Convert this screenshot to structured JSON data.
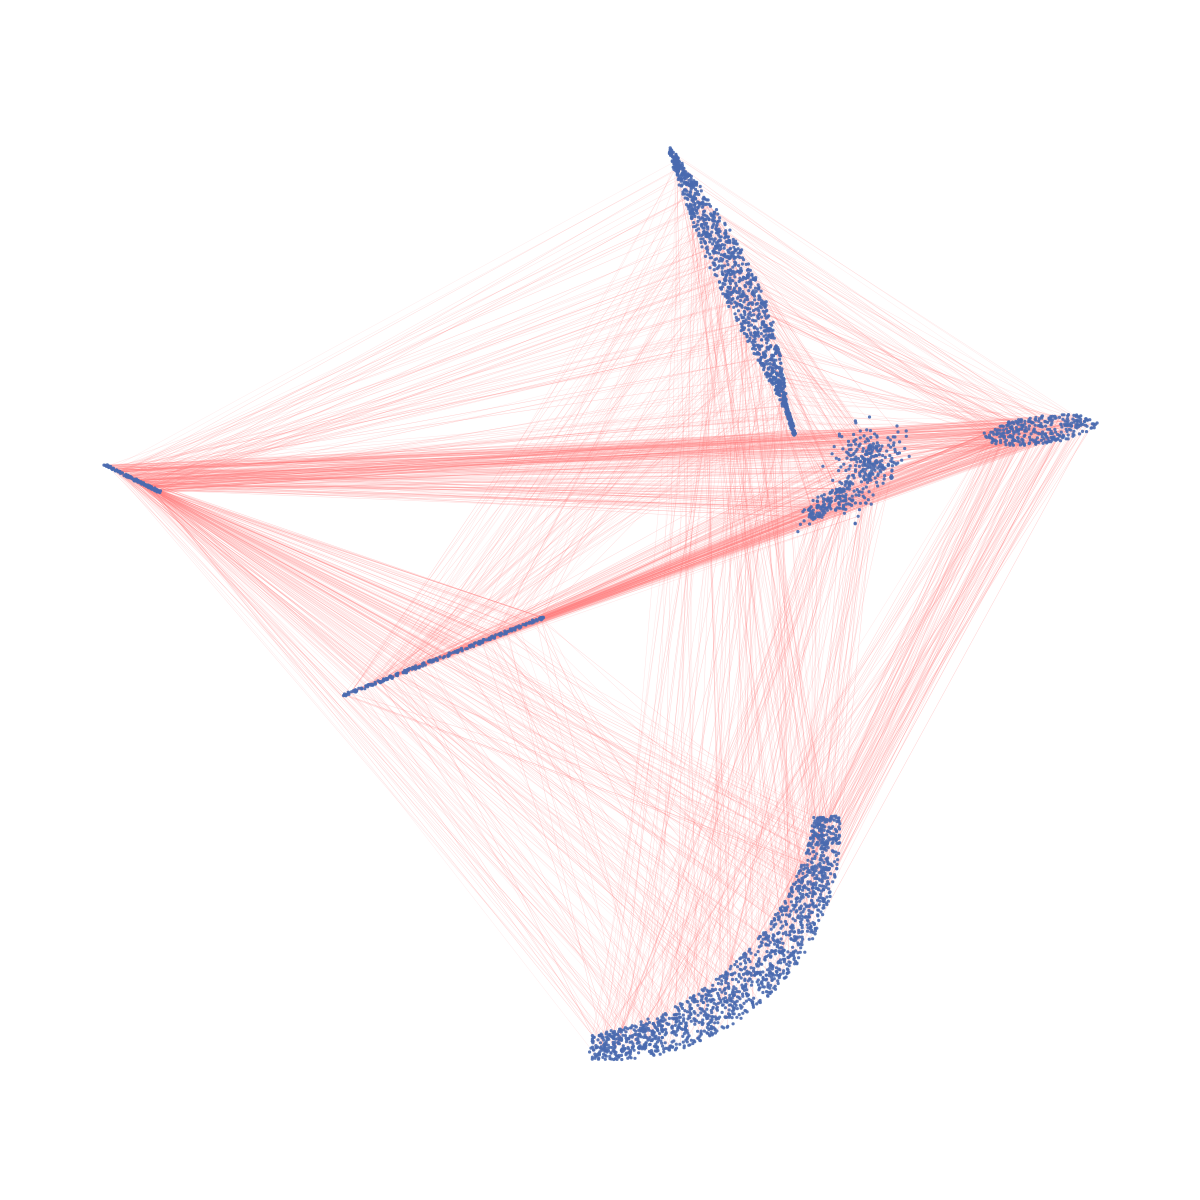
{
  "graph": {
    "type": "network-embedding",
    "background_color": "#ffffff",
    "node_color": "#4a6aaf",
    "edge_color": "#ff8080",
    "labels": [],
    "clusters": [
      {
        "id": "upper-crescent",
        "shape": "crescent",
        "node_count": 1200
      },
      {
        "id": "right-ellipse",
        "shape": "ellipse",
        "node_count": 300
      },
      {
        "id": "center-bird",
        "shape": "blob",
        "node_count": 420
      },
      {
        "id": "lower-crescent",
        "shape": "crescent",
        "node_count": 1500
      },
      {
        "id": "left-segment",
        "shape": "line",
        "node_count": 120
      },
      {
        "id": "middle-line",
        "shape": "line",
        "node_count": 220
      }
    ],
    "edge_density": "high"
  }
}
